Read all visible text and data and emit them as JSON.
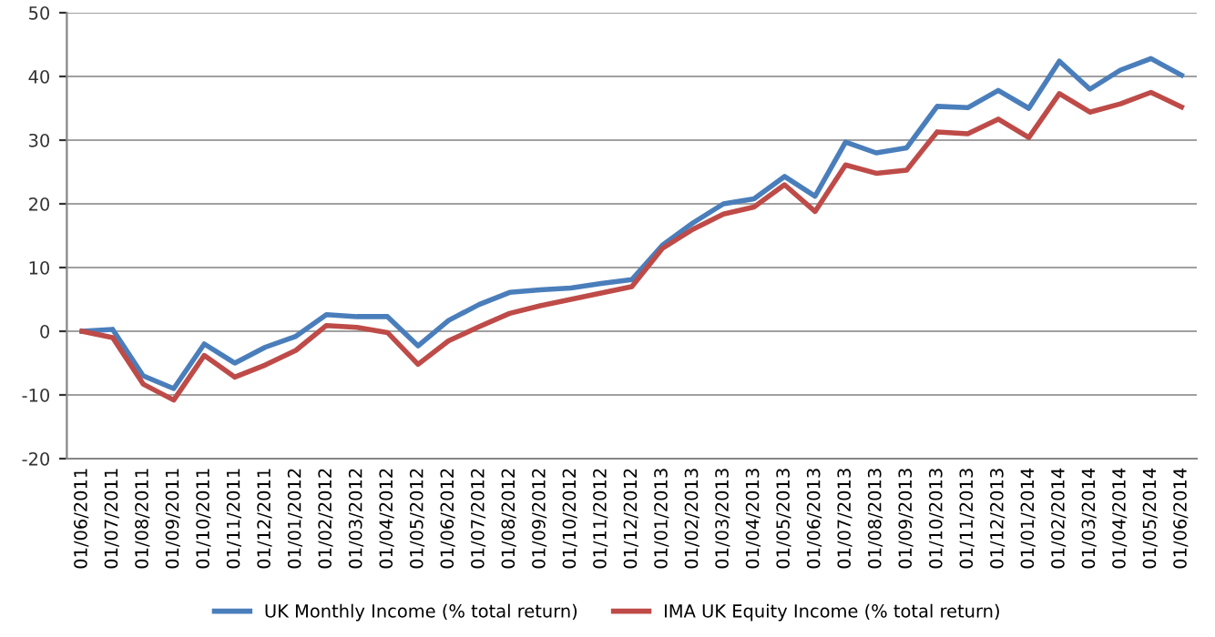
{
  "chart_data": {
    "type": "line",
    "categories": [
      "01/06/2011",
      "01/07/2011",
      "01/08/2011",
      "01/09/2011",
      "01/10/2011",
      "01/11/2011",
      "01/12/2011",
      "01/01/2012",
      "01/02/2012",
      "01/03/2012",
      "01/04/2012",
      "01/05/2012",
      "01/06/2012",
      "01/07/2012",
      "01/08/2012",
      "01/09/2012",
      "01/10/2012",
      "01/11/2012",
      "01/12/2012",
      "01/01/2013",
      "01/02/2013",
      "01/03/2013",
      "01/04/2013",
      "01/05/2013",
      "01/06/2013",
      "01/07/2013",
      "01/08/2013",
      "01/09/2013",
      "01/10/2013",
      "01/11/2013",
      "01/12/2013",
      "01/01/2014",
      "01/02/2014",
      "01/03/2014",
      "01/04/2014",
      "01/05/2014",
      "01/06/2014"
    ],
    "series": [
      {
        "name": "UK Monthly Income (% total return)",
        "color": "#4a7ebb",
        "values": [
          0,
          0.3,
          -7,
          -9,
          -2,
          -5,
          -2.5,
          -0.8,
          2.6,
          2.3,
          2.3,
          -2.3,
          1.7,
          4.2,
          6.1,
          6.5,
          6.8,
          7.5,
          8.1,
          13.5,
          17,
          20,
          20.8,
          24.3,
          21.2,
          29.7,
          28,
          28.8,
          35.3,
          35.1,
          37.8,
          35,
          42.4,
          38,
          41,
          42.8,
          40.2
        ]
      },
      {
        "name": "IMA UK Equity Income (% total return)",
        "color": "#be4b48",
        "values": [
          0,
          -1,
          -8.3,
          -10.8,
          -3.8,
          -7.2,
          -5.3,
          -3,
          0.9,
          0.6,
          -0.2,
          -5.2,
          -1.5,
          0.7,
          2.8,
          4,
          5,
          6,
          7,
          13,
          16,
          18.4,
          19.5,
          23,
          18.8,
          26.1,
          24.8,
          25.3,
          31.3,
          31,
          33.3,
          30.4,
          37.3,
          34.4,
          35.7,
          37.5,
          35.2
        ]
      }
    ],
    "ylim": [
      -20,
      50
    ],
    "yticks": [
      -20,
      -10,
      0,
      10,
      20,
      30,
      40,
      50
    ],
    "grid": "y",
    "legend": "bottom",
    "marker": "none",
    "line_style": "solid"
  }
}
